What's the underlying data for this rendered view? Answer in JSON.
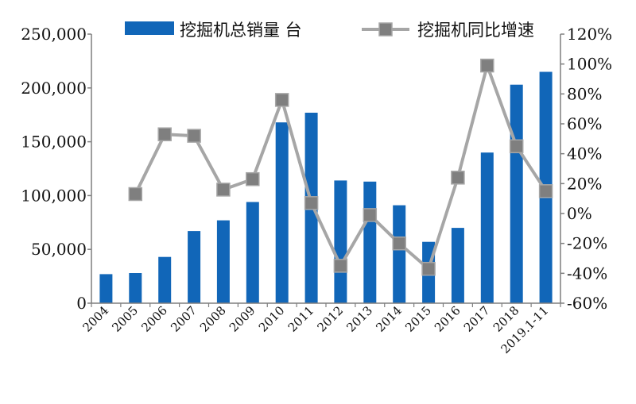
{
  "chart_data": {
    "type": "bar",
    "categories": [
      "2004",
      "2005",
      "2006",
      "2007",
      "2008",
      "2009",
      "2010",
      "2011",
      "2012",
      "2013",
      "2014",
      "2015",
      "2016",
      "2017",
      "2018",
      "2019.1-11"
    ],
    "series": [
      {
        "name": "挖掘机总销量 台",
        "type": "bar",
        "axis": "left",
        "color": "#1166b8",
        "values": [
          27000,
          28000,
          43000,
          67000,
          77000,
          94000,
          168000,
          177000,
          114000,
          113000,
          91000,
          57000,
          70000,
          140000,
          203000,
          215000
        ]
      },
      {
        "name": "挖掘机同比增速",
        "type": "line",
        "axis": "right",
        "color": "#a6a6a6",
        "marker_color": "#7f7f7f",
        "values": [
          null,
          13,
          53,
          52,
          16,
          23,
          76,
          7,
          -35,
          -1,
          -20,
          -37,
          24,
          99,
          45,
          15
        ]
      }
    ],
    "y_left": {
      "min": 0,
      "max": 250000,
      "ticks": [
        0,
        50000,
        100000,
        150000,
        200000,
        250000
      ],
      "tick_labels": [
        "0",
        "50,000",
        "100,000",
        "150,000",
        "200,000",
        "250,000"
      ]
    },
    "y_right": {
      "min": -60,
      "max": 120,
      "ticks": [
        -60,
        -40,
        -20,
        0,
        20,
        40,
        60,
        80,
        100,
        120
      ],
      "tick_labels": [
        "-60%",
        "-40%",
        "-20%",
        "0%",
        "20%",
        "40%",
        "60%",
        "80%",
        "100%",
        "120%"
      ]
    },
    "title": "",
    "xlabel": "",
    "ylabel": "",
    "legend": "top",
    "grid": false
  }
}
